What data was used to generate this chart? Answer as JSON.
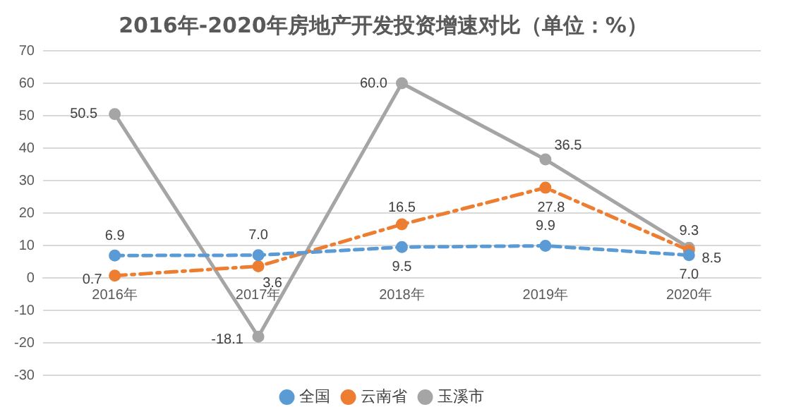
{
  "chart_data": {
    "type": "line",
    "title": "2016年-2020年房地产开发投资增速对比（单位：%）",
    "categories": [
      "2016年",
      "2017年",
      "2018年",
      "2019年",
      "2020年"
    ],
    "series": [
      {
        "name": "全国",
        "color": "#5b9bd5",
        "line_style": "dashed",
        "values": [
          6.9,
          7.0,
          9.5,
          9.9,
          7.0
        ],
        "value_labels": [
          "6.9",
          "7.0",
          "9.5",
          "9.9",
          "7.0"
        ]
      },
      {
        "name": "云南省",
        "color": "#ed7d31",
        "line_style": "dotted",
        "values": [
          0.7,
          3.6,
          16.5,
          27.8,
          8.5
        ],
        "value_labels": [
          "0.7",
          "3.6",
          "16.5",
          "27.8",
          "8.5"
        ]
      },
      {
        "name": "玉溪市",
        "color": "#a5a5a5",
        "line_style": "solid",
        "values": [
          50.5,
          -18.1,
          60.0,
          36.5,
          9.3
        ],
        "value_labels": [
          "50.5",
          "-18.1",
          "60.0",
          "36.5",
          "9.3"
        ]
      }
    ],
    "ylim": [
      -30,
      70
    ],
    "yticks": [
      -30,
      -20,
      -10,
      0,
      10,
      20,
      30,
      40,
      50,
      60,
      70
    ],
    "grid": "y",
    "legend": "bottom",
    "marker": "circle"
  }
}
